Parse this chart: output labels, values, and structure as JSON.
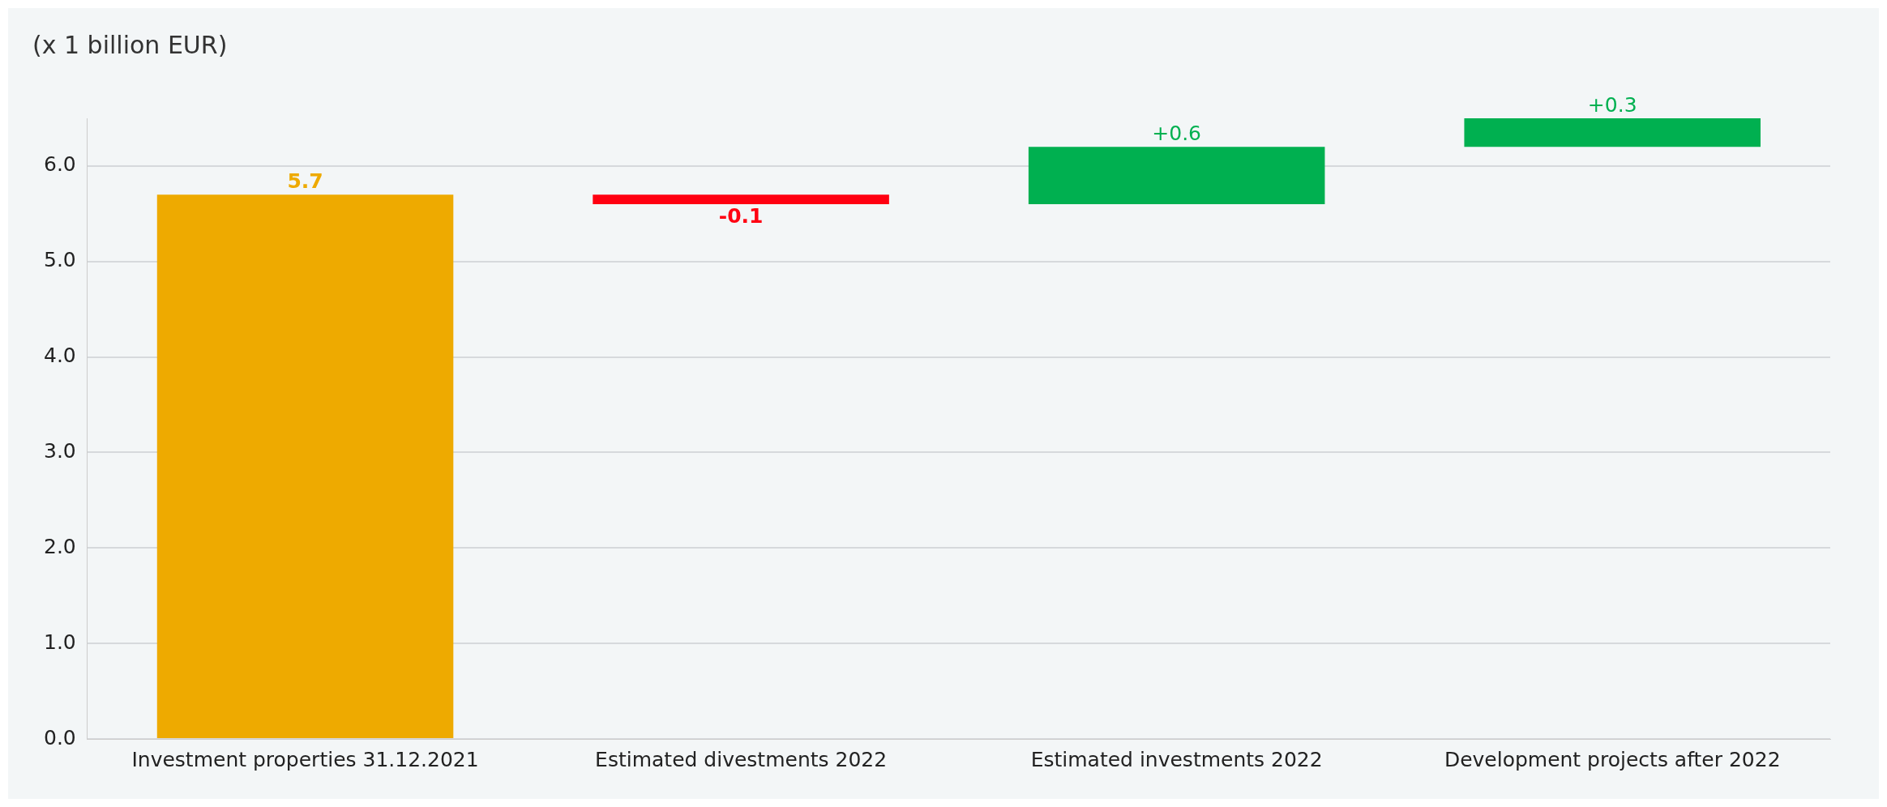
{
  "chart_data": {
    "type": "bar",
    "title": "(x 1 billion EUR)",
    "categories": [
      "Investment properties 31.12.2021",
      "Estimated divestments 2022",
      "Estimated investments 2022",
      "Development projects after 2022"
    ],
    "values": [
      5.7,
      -0.1,
      0.6,
      0.3
    ],
    "base": [
      0,
      5.7,
      5.6,
      6.2
    ],
    "colors": [
      "#eeaa00",
      "#ff0011",
      "#00b050",
      "#00b050"
    ],
    "value_labels": [
      "5.7",
      "-0.1",
      "+0.6",
      "+0.3"
    ],
    "ylim": [
      0,
      6.5
    ],
    "yticks": [
      {
        "value": 0,
        "label": "0.0"
      },
      {
        "value": 1,
        "label": "1.0"
      },
      {
        "value": 2,
        "label": "2.0"
      },
      {
        "value": 3,
        "label": "3.0"
      },
      {
        "value": 4,
        "label": "4.0"
      },
      {
        "value": 5,
        "label": "5.0"
      },
      {
        "value": 6,
        "label": "6.0"
      }
    ],
    "grid": "y",
    "legend": false
  }
}
